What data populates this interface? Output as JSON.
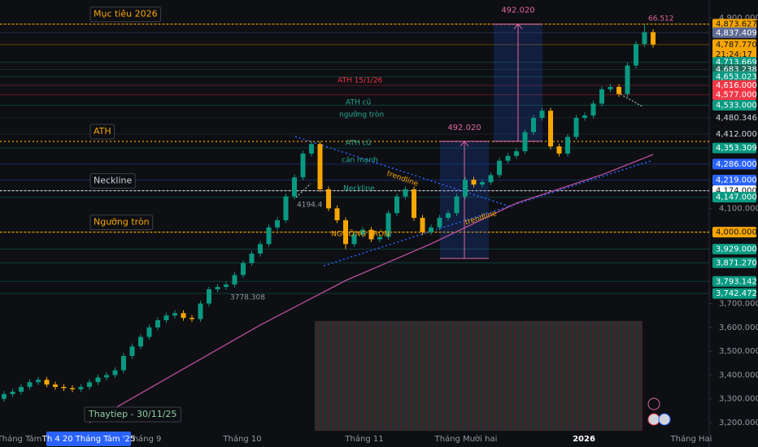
{
  "chart_data": {
    "type": "candlestick",
    "open": [
      3300,
      3320,
      3330,
      3350,
      3370,
      3380,
      3360,
      3350,
      3345,
      3340,
      3350,
      3370,
      3390,
      3400,
      3420,
      3480,
      3520,
      3560,
      3600,
      3630,
      3650,
      3660,
      3640,
      3635,
      3700,
      3760,
      3770,
      3780,
      3820,
      3870,
      3910,
      3950,
      4020,
      4050,
      4150,
      4230,
      4330,
      4370,
      4180,
      4100,
      4050,
      3950,
      3990,
      4010,
      3970,
      3980,
      4080,
      4150,
      4180,
      4060,
      4000,
      4020,
      4060,
      4080,
      4150,
      4220,
      4200,
      4210,
      4240,
      4300,
      4320,
      4340,
      4420,
      4480,
      4510,
      4360,
      4330,
      4400,
      4480,
      4490,
      4540,
      4600,
      4610,
      4580,
      4700,
      4790,
      4840
    ],
    "high": [
      3332,
      3342,
      3362,
      3382,
      3392,
      3392,
      3372,
      3362,
      3357,
      3362,
      3382,
      3402,
      3412,
      3432,
      3492,
      3532,
      3572,
      3612,
      3642,
      3662,
      3672,
      3672,
      3652,
      3712,
      3772,
      3782,
      3792,
      3832,
      3882,
      3922,
      3962,
      4032,
      4062,
      4162,
      4242,
      4342,
      4381,
      4382,
      4192,
      4112,
      4062,
      4002,
      4022,
      4022,
      3992,
      4092,
      4162,
      4192,
      4192,
      4072,
      4032,
      4072,
      4092,
      4162,
      4232,
      4232,
      4222,
      4252,
      4312,
      4332,
      4352,
      4432,
      4492,
      4522,
      4522,
      4372,
      4412,
      4492,
      4502,
      4552,
      4612,
      4622,
      4622,
      4712,
      4802,
      4873,
      4852
    ],
    "low": [
      3288,
      3308,
      3318,
      3338,
      3358,
      3348,
      3338,
      3333,
      3328,
      3328,
      3338,
      3358,
      3378,
      3388,
      3408,
      3468,
      3508,
      3548,
      3588,
      3618,
      3638,
      3628,
      3623,
      3623,
      3688,
      3748,
      3758,
      3768,
      3808,
      3858,
      3898,
      3938,
      4008,
      4038,
      4138,
      4218,
      4318,
      4168,
      4088,
      4038,
      3929,
      3938,
      3978,
      3958,
      3958,
      3968,
      4068,
      4138,
      4048,
      3988,
      3988,
      4008,
      4048,
      4068,
      4138,
      4188,
      4188,
      4198,
      4228,
      4288,
      4308,
      4328,
      4408,
      4468,
      4348,
      4318,
      4318,
      4388,
      4468,
      4478,
      4528,
      4588,
      4568,
      4568,
      4688,
      4778,
      4775
    ],
    "close": [
      3320,
      3330,
      3350,
      3370,
      3380,
      3360,
      3350,
      3345,
      3340,
      3350,
      3370,
      3390,
      3400,
      3420,
      3480,
      3520,
      3560,
      3600,
      3630,
      3650,
      3660,
      3640,
      3635,
      3700,
      3760,
      3770,
      3780,
      3820,
      3870,
      3910,
      3950,
      4020,
      4050,
      4150,
      4230,
      4330,
      4370,
      4180,
      4100,
      4050,
      3950,
      3990,
      4010,
      3970,
      3980,
      4080,
      4150,
      4180,
      4060,
      4000,
      4020,
      4060,
      4080,
      4150,
      4220,
      4200,
      4210,
      4240,
      4300,
      4320,
      4340,
      4420,
      4480,
      4510,
      4360,
      4330,
      4400,
      4480,
      4490,
      4540,
      4600,
      4610,
      4580,
      4700,
      4790,
      4840,
      4787.77
    ],
    "colors": {
      "up": "#089981",
      "down": "#f7a600"
    },
    "ma": {
      "color": "#b7509a",
      "x": [
        10,
        20,
        30,
        40,
        50,
        60,
        70,
        76
      ],
      "values": [
        3200,
        3405,
        3610,
        3797,
        3951,
        4122,
        4241,
        4326
      ]
    },
    "ylim": [
      3166,
      4975
    ],
    "yticks": [
      {
        "value": 4900,
        "label": "4,900.000"
      },
      {
        "value": 4100,
        "label": "4,100.000"
      },
      {
        "value": 3700,
        "label": "3,700.000"
      },
      {
        "value": 3600,
        "label": "3,600.000"
      },
      {
        "value": 3500,
        "label": "3,500.000"
      },
      {
        "value": 3400,
        "label": "3,400.000"
      },
      {
        "value": 3300,
        "label": "3,300.000"
      },
      {
        "value": 3200,
        "label": "3,200.000"
      }
    ],
    "x_labels": [
      "Tháng Tám",
      "Tháng 9",
      "Tháng 10",
      "Tháng 11",
      "Tháng Mười hai",
      "2026",
      "Tháng Hai"
    ],
    "crosshair_date": "Th 4 20 Tháng Tám '25",
    "countdown": "21:24:17",
    "price_labels": [
      {
        "value": 4873.627,
        "label": "4,873.627",
        "color": "#f7a600",
        "text_color": "#131722"
      },
      {
        "value": 4837.409,
        "label": "4,837.409",
        "color": "#5d6b94",
        "text_color": "#ffffff"
      },
      {
        "value": 4787.77,
        "label": "4,787.770",
        "color": "#f7a600",
        "text_color": "#131722"
      },
      {
        "value": 4713.669,
        "label": "4,713.669",
        "color": "#089981",
        "text_color": "#ffffff"
      },
      {
        "value": 4683.238,
        "label": "4,683.238",
        "color": "#1b6a5c",
        "text_color": "#ffffff"
      },
      {
        "value": 4653.023,
        "label": "4,653.023",
        "color": "#089981",
        "text_color": "#ffffff"
      },
      {
        "value": 4616,
        "label": "4,616.000",
        "color": "#f23645",
        "text_color": "#ffffff"
      },
      {
        "value": 4577,
        "label": "4,577.000",
        "color": "#f23645",
        "text_color": "#ffffff"
      },
      {
        "value": 4533,
        "label": "4,533.000",
        "color": "#089981",
        "text_color": "#ffffff"
      },
      {
        "value": 4480.346,
        "label": "4,480.346",
        "color": "#0e0f13",
        "text_color": "#d1d4dc"
      },
      {
        "value": 4412,
        "label": "4,412.000",
        "color": "#0e0f13",
        "text_color": "#d1d4dc"
      },
      {
        "value": 4353.309,
        "label": "4,353.309",
        "color": "#089981",
        "text_color": "#ffffff"
      },
      {
        "value": 4286,
        "label": "4,286.000",
        "color": "#2962ff",
        "text_color": "#ffffff"
      },
      {
        "value": 4219,
        "label": "4,219.000",
        "color": "#2962ff",
        "text_color": "#ffffff"
      },
      {
        "value": 4174,
        "label": "4,174.000",
        "color": "#ffffff",
        "text_color": "#131722"
      },
      {
        "value": 4147,
        "label": "4,147.000",
        "color": "#089981",
        "text_color": "#ffffff"
      },
      {
        "value": 4000,
        "label": "4,000.000",
        "color": "#f7a600",
        "text_color": "#131722"
      },
      {
        "value": 3929,
        "label": "3,929.000",
        "color": "#089981",
        "text_color": "#ffffff"
      },
      {
        "value": 3871.27,
        "label": "3,871.270",
        "color": "#089981",
        "text_color": "#ffffff"
      },
      {
        "value": 3793.142,
        "label": "3,793.142",
        "color": "#089981",
        "text_color": "#ffffff"
      },
      {
        "value": 3742.472,
        "label": "3,742.472",
        "color": "#089981",
        "text_color": "#ffffff"
      }
    ],
    "levels": [
      {
        "name": "Mục tiêu 2026",
        "value": 4873.627,
        "color": "#f7a600"
      },
      {
        "name": "ATH",
        "value": 4381,
        "color": "#f7a600"
      },
      {
        "name": "Neckline",
        "value": 4174,
        "color": "#d1d4dc"
      },
      {
        "name": "Ngưỡng tròn",
        "value": 4000,
        "color": "#f7a600"
      }
    ],
    "measures": [
      {
        "base": 3889.587,
        "value": 492.02,
        "value_label": "492.020",
        "color": "#e0679e"
      },
      {
        "base": 4381.607,
        "value": 492.02,
        "value_label": "492.020",
        "color": "#e0679e"
      }
    ],
    "annotations": [
      {
        "text": "66.512",
        "color": "#e0679e"
      },
      {
        "text": "ATH 15/1/26",
        "color": "#f23645"
      },
      {
        "text": "ATH cũ",
        "color": "#22ab94"
      },
      {
        "text": "ngưỡng tròn",
        "color": "#22ab94"
      },
      {
        "text": "ATH cũ",
        "color": "#22ab94"
      },
      {
        "text": "cản mạnh",
        "color": "#22ab94"
      },
      {
        "text": "trendline",
        "color": "#f7a600"
      },
      {
        "text": "Neckline",
        "color": "#22ab94"
      },
      {
        "text": "trendline",
        "color": "#f7a600"
      },
      {
        "text": "NGƯỠNG TRÒN",
        "color": "#f7a600"
      },
      {
        "text": "4194.4",
        "color": "#9598a1"
      },
      {
        "text": "3778.308",
        "color": "#9598a1"
      }
    ],
    "note": "Thaytiep - 30/11/25"
  }
}
